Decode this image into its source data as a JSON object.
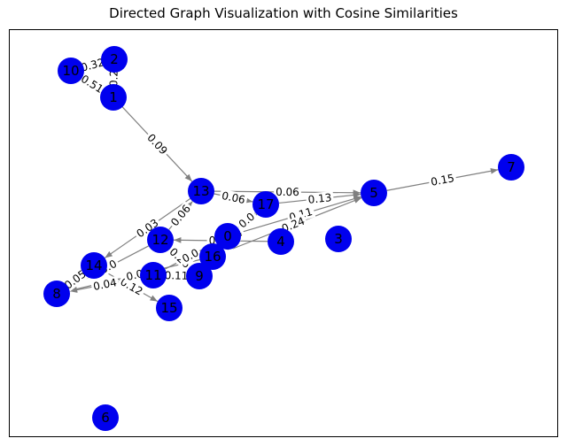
{
  "title": "Directed Graph Visualization with Cosine Similarities",
  "colors": {
    "node": "#0000ee",
    "edge": "#808080",
    "frame": "#000000"
  },
  "nodes": [
    "0",
    "1",
    "2",
    "3",
    "4",
    "5",
    "6",
    "7",
    "8",
    "9",
    "10",
    "11",
    "12",
    "13",
    "14",
    "15",
    "16",
    "17"
  ],
  "edges": [
    {
      "source": "10",
      "target": "2",
      "label": "0.32"
    },
    {
      "source": "10",
      "target": "1",
      "label": "0.51"
    },
    {
      "source": "2",
      "target": "1",
      "label": "0.2"
    },
    {
      "source": "1",
      "target": "13",
      "label": "0.09"
    },
    {
      "source": "13",
      "target": "17",
      "label": "0.06"
    },
    {
      "source": "13",
      "target": "14",
      "label": "0.03"
    },
    {
      "source": "12",
      "target": "13",
      "label": "0.06"
    },
    {
      "source": "17",
      "target": "5",
      "label": "0.13"
    },
    {
      "source": "13",
      "target": "5",
      "label": "0.06"
    },
    {
      "source": "5",
      "target": "7",
      "label": "0.15"
    },
    {
      "source": "0",
      "target": "5",
      "label": "0.11"
    },
    {
      "source": "16",
      "target": "5",
      "label": "0.24"
    },
    {
      "source": "0",
      "target": "17",
      "label": "0.0"
    },
    {
      "source": "9",
      "target": "17",
      "label": "0.14"
    },
    {
      "source": "12",
      "target": "9",
      "label": "0.26"
    },
    {
      "source": "11",
      "target": "9",
      "label": "0.11"
    },
    {
      "source": "14",
      "target": "8",
      "label": "0.05"
    },
    {
      "source": "11",
      "target": "8",
      "label": "0.04"
    },
    {
      "source": "12",
      "target": "8",
      "label": "0.0"
    },
    {
      "source": "14",
      "target": "15",
      "label": "0.12"
    },
    {
      "source": "4",
      "target": "12",
      "label": "0.12"
    },
    {
      "source": "11",
      "target": "0",
      "label": "0.0"
    },
    {
      "source": "16",
      "target": "8",
      "label": "0.0"
    }
  ]
}
